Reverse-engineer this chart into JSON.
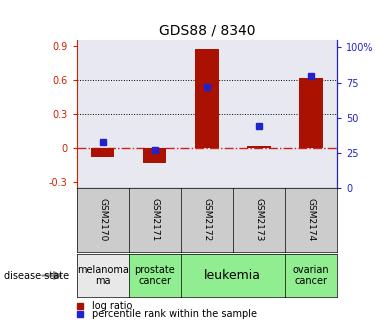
{
  "title": "GDS88 / 8340",
  "samples": [
    "GSM2170",
    "GSM2171",
    "GSM2172",
    "GSM2173",
    "GSM2174"
  ],
  "log_ratio": [
    -0.08,
    -0.13,
    0.87,
    0.02,
    0.62
  ],
  "percentile_rank": [
    33,
    27,
    72,
    44,
    80
  ],
  "bar_color": "#aa1100",
  "dot_color": "#2222cc",
  "ylim_left": [
    -0.35,
    0.95
  ],
  "ylim_right": [
    0,
    105
  ],
  "yticks_left": [
    -0.3,
    0.0,
    0.3,
    0.6,
    0.9
  ],
  "ytick_labels_left": [
    "-0.3",
    "0",
    "0.3",
    "0.6",
    "0.9"
  ],
  "yticks_right": [
    0,
    25,
    50,
    75,
    100
  ],
  "ytick_labels_right": [
    "0",
    "25",
    "50",
    "75",
    "100%"
  ],
  "hline_color": "#cc2222",
  "dotted_values": [
    0.3,
    0.6
  ],
  "bar_width": 0.45,
  "background_color": "#ffffff",
  "plot_bg_color": "#e8e8f0",
  "sample_box_color": "#cccccc",
  "left_tick_color": "#cc2200",
  "right_tick_color": "#2222cc",
  "disease_configs": [
    {
      "label": "melanoma\nma",
      "span": 1,
      "color": "#e8e8e8",
      "fontsize": 7
    },
    {
      "label": "prostate\ncancer",
      "span": 1,
      "color": "#90ee90",
      "fontsize": 7
    },
    {
      "label": "leukemia",
      "span": 2,
      "color": "#90ee90",
      "fontsize": 9
    },
    {
      "label": "ovarian\ncancer",
      "span": 1,
      "color": "#90ee90",
      "fontsize": 7
    }
  ]
}
